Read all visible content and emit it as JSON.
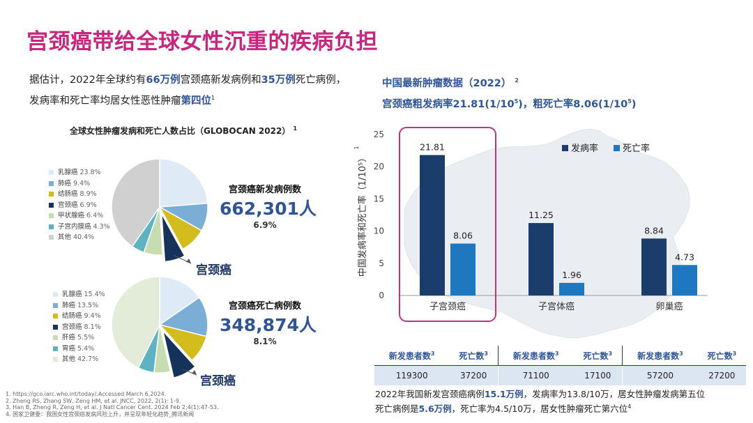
{
  "title": "宫颈癌带给全球女性沉重的疾病负担",
  "intro": {
    "l1_a": "据估计，2022年全球约有",
    "l1_b": "66万例",
    "l1_c": "宫颈癌新发病例和",
    "l1_d": "35万例",
    "l1_e": "死亡病例，",
    "l2_a": "发病率和死亡率均居女性恶性肿瘤",
    "l2_b": "第四位",
    "l2_sup": "1"
  },
  "right_header": {
    "l1": "中国最新肿瘤数据（2022）",
    "l1_sup": "2",
    "l2_a": "宫颈癌粗发病率21.81(1/10",
    "l2_sup1": "5",
    "l2_b": ")，粗死亡率8.06(1/10",
    "l2_sup2": "5",
    "l2_c": ")"
  },
  "pie_section": {
    "title": "全球女性肿瘤发病和死亡人数占比（GLOBOCAN 2022）",
    "title_sup": "1",
    "incidence": {
      "label": "宫颈癌新发病例数",
      "number": "662,301人",
      "pct": "6.9%",
      "tag": "宫颈癌"
    },
    "mortality": {
      "label": "宫颈癌死亡病例数",
      "number": "348,874人",
      "pct": "8.1%",
      "tag": "宫颈癌"
    }
  },
  "chart_data": [
    {
      "type": "pie",
      "title": "",
      "slices": [
        {
          "name": "乳腺癌",
          "label": "23.8%",
          "value": 23.8,
          "color": "#deebf7"
        },
        {
          "name": "肺癌",
          "label": "9.4%",
          "value": 9.4,
          "color": "#7aaed6"
        },
        {
          "name": "结肠癌",
          "label": "8.9%",
          "value": 8.9,
          "color": "#d2bd1c"
        },
        {
          "name": "宫颈癌",
          "label": "6.9%",
          "value": 6.9,
          "color": "#15325a"
        },
        {
          "name": "甲状腺癌",
          "label": "6.4%",
          "value": 6.4,
          "color": "#c8dcb2"
        },
        {
          "name": "子宫内膜癌",
          "label": "4.3%",
          "value": 4.3,
          "color": "#5db3c2"
        },
        {
          "name": "其他",
          "label": "40.4%",
          "value": 40.4,
          "color": "#d0d0d0"
        }
      ]
    },
    {
      "type": "pie",
      "title": "",
      "slices": [
        {
          "name": "乳腺癌",
          "label": "15.4%",
          "value": 15.4,
          "color": "#deebf7"
        },
        {
          "name": "肺癌",
          "label": "13.5%",
          "value": 13.5,
          "color": "#7aaed6"
        },
        {
          "name": "结肠癌",
          "label": "9.4%",
          "value": 9.4,
          "color": "#d2bd1c"
        },
        {
          "name": "宫颈癌",
          "label": "8.1%",
          "value": 8.1,
          "color": "#15325a"
        },
        {
          "name": "肝癌",
          "label": "5.5%",
          "value": 5.5,
          "color": "#c8dcb2"
        },
        {
          "name": "胃癌",
          "label": "5.4%",
          "value": 5.4,
          "color": "#5db3c2"
        },
        {
          "name": "其他",
          "label": "42.7%",
          "value": 42.7,
          "color": "#e3ecd9"
        }
      ]
    },
    {
      "type": "bar",
      "title": "",
      "categories": [
        "子宫颈癌",
        "子宫体癌",
        "卵巢癌"
      ],
      "series": [
        {
          "name": "发病率",
          "values": [
            21.81,
            11.25,
            8.84
          ],
          "labels": [
            "21.81",
            "11.25",
            "8.84"
          ],
          "color": "#1a3d6b"
        },
        {
          "name": "死亡率",
          "values": [
            8.06,
            1.96,
            4.73
          ],
          "labels": [
            "8.06",
            "1.96",
            "4.73"
          ],
          "color": "#1f77c0"
        }
      ],
      "ylabel": "中国发病率和死亡率（1/10⁵）",
      "ylabel_sup": "1",
      "ylim": [
        0,
        25
      ],
      "yticks": [
        "0",
        "5",
        "10",
        "15",
        "20",
        "25"
      ],
      "ytick_values": [
        0,
        5,
        10,
        15,
        20,
        25
      ],
      "legend": "top-right",
      "highlight_category": "子宫颈癌",
      "highlight_color": "#c2347a"
    }
  ],
  "stats_table": {
    "headers": [
      {
        "text": "新发患者数",
        "sup": "3"
      },
      {
        "text": "死亡数",
        "sup": "3"
      },
      {
        "text": "新发患者数",
        "sup": "3"
      },
      {
        "text": "死亡数",
        "sup": "3"
      },
      {
        "text": "新发患者数",
        "sup": "3"
      },
      {
        "text": "死亡数",
        "sup": "3"
      }
    ],
    "values": [
      "119300",
      "37200",
      "71100",
      "17100",
      "57200",
      "27200"
    ]
  },
  "summary": {
    "l1_a": "2022年我国新发宫颈癌病例",
    "l1_b": "15.1万例",
    "l1_c": "，发病率为13.8/10万，居女性肿瘤发病第五位",
    "l2_a": "死亡病例是",
    "l2_b": "5.6万例",
    "l2_c": "，死亡率为4.5/10万，居女性肿瘤死亡第六位",
    "l2_sup": "4"
  },
  "references": [
    "1.   https://gco.iarc.who.int/today/.Accessed March 6,2024.",
    "2.   Zheng RS, Zhang SW, Zeng HM, et al. JNCC, 2022, 2(1): 1-9.",
    "3.   Han B, Zheng R, Zeng H, et al. J Natl Cancer Cent. 2024 Feb 2;4(1):47-53.",
    "4.   国家卫健委：我国女性宫颈癌发病风险上升，并呈现年轻化趋势_腾讯新闻"
  ]
}
